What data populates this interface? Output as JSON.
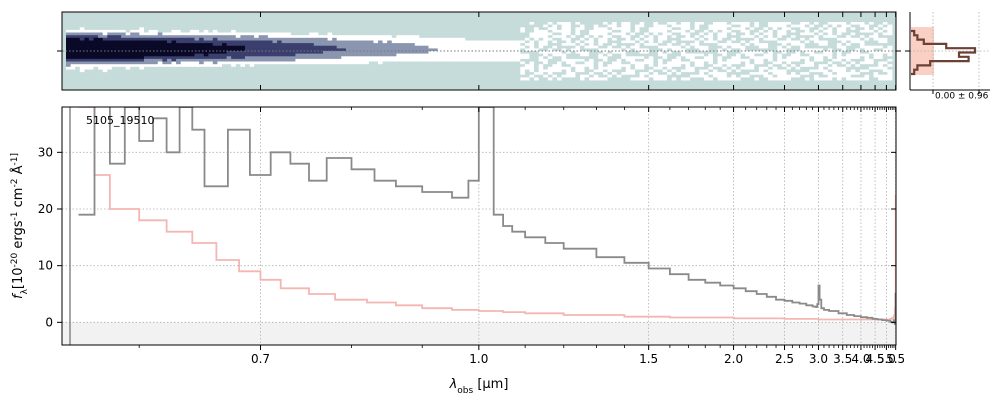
{
  "chart_data": [
    {
      "type": "heatmap",
      "panel": "2d-spectrum",
      "colormap": [
        "#ffffff",
        "#c5dcda",
        "#8a96b0",
        "#3b3f6e",
        "#0a0a28"
      ],
      "background_color": "#c5dcda",
      "xscale": "reciprocal",
      "xlim": [
        0.55,
        5.52
      ],
      "trace_center_line": true
    },
    {
      "type": "line",
      "panel": "1d-spectrum",
      "label": "5105_19510",
      "xlabel": "λ_obs [μm]",
      "ylabel": "f_λ [10^-20 ergs^-1 cm^-2 Å^-1]",
      "xlim": [
        0.55,
        5.52
      ],
      "ylim": [
        -4,
        38
      ],
      "xscale": "reciprocal",
      "xticks": [
        0.7,
        1.0,
        1.5,
        2.0,
        2.5,
        3.0,
        3.5,
        4.0,
        4.5,
        5.0,
        5.5
      ],
      "yticks": [
        0,
        10,
        20,
        30
      ],
      "grid": true,
      "series": [
        {
          "role": "flux",
          "color": "#8a8a8a",
          "x": [
            0.56,
            0.57,
            0.58,
            0.59,
            0.6,
            0.61,
            0.62,
            0.63,
            0.64,
            0.65,
            0.67,
            0.69,
            0.71,
            0.73,
            0.75,
            0.77,
            0.8,
            0.83,
            0.86,
            0.9,
            0.95,
            0.98,
            1.0,
            1.01,
            1.03,
            1.05,
            1.07,
            1.1,
            1.15,
            1.2,
            1.3,
            1.4,
            1.5,
            1.6,
            1.7,
            1.8,
            1.9,
            2.0,
            2.1,
            2.2,
            2.3,
            2.4,
            2.5,
            2.6,
            2.7,
            2.8,
            2.9,
            2.95,
            2.98,
            3.0,
            3.02,
            3.05,
            3.1,
            3.2,
            3.4,
            3.6,
            3.8,
            4.0,
            4.2,
            4.4,
            4.6,
            4.8,
            5.0,
            5.2,
            5.3,
            5.4,
            5.45,
            5.48,
            5.5
          ],
          "y": [
            19,
            40,
            28,
            38,
            32,
            36,
            30,
            38,
            34,
            24,
            34,
            26,
            30,
            28,
            25,
            29,
            27,
            25,
            24,
            23,
            22,
            25,
            38,
            38,
            19,
            17,
            16,
            15,
            14,
            13,
            11.5,
            10.5,
            9.5,
            8.5,
            7.5,
            7,
            6.5,
            6,
            5.5,
            5,
            4.5,
            4,
            3.8,
            3.5,
            3.3,
            3,
            2.8,
            2.7,
            3.2,
            6.5,
            4,
            2.5,
            2.2,
            2,
            1.6,
            1.3,
            1.1,
            0.9,
            0.8,
            0.6,
            0.5,
            0.4,
            0.3,
            0.1,
            0.0,
            0.4,
            -0.3,
            0.2,
            5.2
          ]
        },
        {
          "role": "uncertainty",
          "color": "#f4b6b3",
          "x": [
            0.56,
            0.57,
            0.58,
            0.6,
            0.62,
            0.64,
            0.66,
            0.68,
            0.7,
            0.72,
            0.75,
            0.78,
            0.82,
            0.86,
            0.9,
            0.95,
            1.0,
            1.05,
            1.1,
            1.2,
            1.4,
            1.6,
            2.0,
            2.5,
            3.0,
            3.5,
            4.0,
            4.5,
            5.0,
            5.2,
            5.3,
            5.4,
            5.45,
            5.48,
            5.5
          ],
          "y": [
            38,
            26,
            20,
            18,
            16,
            14,
            11,
            9,
            7.5,
            6,
            5,
            4,
            3.5,
            3,
            2.5,
            2.2,
            2,
            1.8,
            1.6,
            1.3,
            1.0,
            0.85,
            0.7,
            0.6,
            0.5,
            0.5,
            0.5,
            0.5,
            0.5,
            0.6,
            0.8,
            1.2,
            2.5,
            5,
            22.5
          ]
        }
      ]
    },
    {
      "type": "bar",
      "panel": "profile",
      "orientation": "horizontal",
      "annotation": "0.00 ± 0.96",
      "colors": {
        "line": "#6b4035",
        "fill": "#fad0c4"
      },
      "rows": [
        0.05,
        0.1,
        0.2,
        0.55,
        1.0,
        0.75,
        0.9,
        0.3,
        0.1,
        0.05
      ]
    }
  ]
}
